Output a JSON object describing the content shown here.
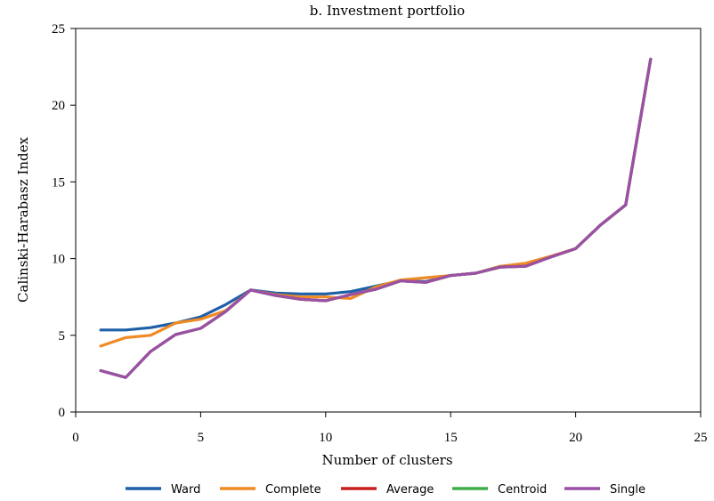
{
  "chart_data": {
    "type": "line",
    "title": "b. Investment portfolio",
    "xlabel": "Number of clusters",
    "ylabel": "Calinski-Harabasz Index",
    "xlim": [
      0,
      25
    ],
    "ylim": [
      0,
      25
    ],
    "xticks": [
      0,
      5,
      10,
      15,
      20,
      25
    ],
    "yticks": [
      0,
      5,
      10,
      15,
      20,
      25
    ],
    "grid": false,
    "legend_position": "bottom",
    "x": [
      1,
      2,
      3,
      4,
      5,
      6,
      7,
      8,
      9,
      10,
      11,
      12,
      13,
      14,
      15,
      16,
      17,
      18,
      19,
      20,
      21,
      22,
      23
    ],
    "series": [
      {
        "name": "Ward",
        "color": "#1f5fa8",
        "values": [
          5.35,
          5.35,
          5.5,
          5.8,
          6.2,
          7.0,
          7.95,
          7.75,
          7.7,
          7.7,
          7.85,
          8.2,
          8.55,
          8.5,
          8.9,
          9.05,
          9.5,
          9.55,
          10.1,
          10.65,
          12.2,
          13.5,
          23.0
        ]
      },
      {
        "name": "Complete",
        "color": "#f08a24",
        "values": [
          4.3,
          4.85,
          5.0,
          5.8,
          6.05,
          6.6,
          7.95,
          7.65,
          7.5,
          7.5,
          7.4,
          8.15,
          8.6,
          8.75,
          8.9,
          9.05,
          9.5,
          9.7,
          10.15,
          10.65,
          12.2,
          13.5,
          23.0
        ]
      },
      {
        "name": "Average",
        "color": "#c8201e",
        "values": [
          2.7,
          2.25,
          3.95,
          5.05,
          5.45,
          6.55,
          7.95,
          7.6,
          7.35,
          7.25,
          7.65,
          8.0,
          8.55,
          8.45,
          8.9,
          9.05,
          9.45,
          9.5,
          10.1,
          10.65,
          12.2,
          13.5,
          23.0
        ]
      },
      {
        "name": "Centroid",
        "color": "#3fae49",
        "values": [
          2.7,
          2.25,
          3.95,
          5.05,
          5.45,
          6.55,
          7.95,
          7.6,
          7.35,
          7.25,
          7.65,
          8.0,
          8.55,
          8.45,
          8.9,
          9.05,
          9.45,
          9.5,
          10.1,
          10.65,
          12.2,
          13.5,
          23.0
        ]
      },
      {
        "name": "Single",
        "color": "#9b4fa6",
        "values": [
          2.7,
          2.25,
          3.95,
          5.05,
          5.45,
          6.55,
          7.95,
          7.6,
          7.35,
          7.25,
          7.65,
          8.0,
          8.55,
          8.45,
          8.9,
          9.05,
          9.45,
          9.5,
          10.1,
          10.65,
          12.2,
          13.5,
          23.0
        ]
      }
    ]
  }
}
